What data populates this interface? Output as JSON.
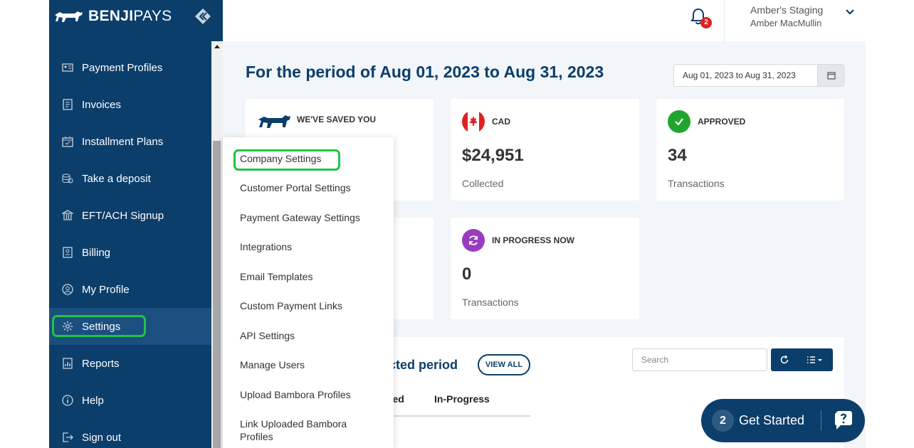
{
  "brand": {
    "name_bold": "BENJI",
    "name_light": "PAYS",
    "logo_icon": "dog-logo-icon",
    "collapse_icon": "collapse-arrow-icon"
  },
  "sidebar": {
    "items": [
      {
        "label": "Payment Profiles",
        "icon": "profile-card-icon"
      },
      {
        "label": "Invoices",
        "icon": "invoice-icon"
      },
      {
        "label": "Installment Plans",
        "icon": "calendar-check-icon"
      },
      {
        "label": "Take a deposit",
        "icon": "coins-icon"
      },
      {
        "label": "EFT/ACH Signup",
        "icon": "bank-icon"
      },
      {
        "label": "Billing",
        "icon": "billing-icon"
      },
      {
        "label": "My Profile",
        "icon": "user-circle-icon"
      },
      {
        "label": "Settings",
        "icon": "gear-icon",
        "active": true
      },
      {
        "label": "Reports",
        "icon": "reports-icon"
      },
      {
        "label": "Help",
        "icon": "info-icon"
      },
      {
        "label": "Sign out",
        "icon": "sign-out-icon"
      }
    ]
  },
  "header": {
    "notification_count": "2",
    "account_name": "Amber's Staging",
    "account_user": "Amber MacMullin"
  },
  "main": {
    "period_title": "For the period of Aug 01, 2023 to Aug 31, 2023",
    "date_range": "Aug 01, 2023 to Aug 31, 2023",
    "cards": {
      "saved": {
        "title": "WE'VE SAVED YOU"
      },
      "cad": {
        "title": "CAD",
        "value": "$24,951",
        "sub": "Collected"
      },
      "approved": {
        "title": "APPROVED",
        "value": "34",
        "sub": "Transactions"
      },
      "in_progress": {
        "title": "IN PROGRESS NOW",
        "value": "0",
        "sub": "Transactions"
      }
    },
    "panel": {
      "title_partial": "cted period",
      "view_all": "VIEW ALL",
      "search_placeholder": "Search",
      "tabs": [
        "ined",
        "In-Progress"
      ]
    }
  },
  "dropdown": {
    "items": [
      "Company Settings",
      "Customer Portal Settings",
      "Payment Gateway Settings",
      "Integrations",
      "Email Templates",
      "Custom Payment Links",
      "API Settings",
      "Manage Users",
      "Upload Bambora Profiles",
      "Link Uploaded Bambora Profiles"
    ]
  },
  "get_started": {
    "count": "2",
    "label": "Get Started"
  },
  "colors": {
    "navy": "#0c3e6b",
    "highlight": "#22c243",
    "approved": "#1fa52d",
    "in_progress": "#9b3bbd",
    "badge": "#e02020"
  }
}
